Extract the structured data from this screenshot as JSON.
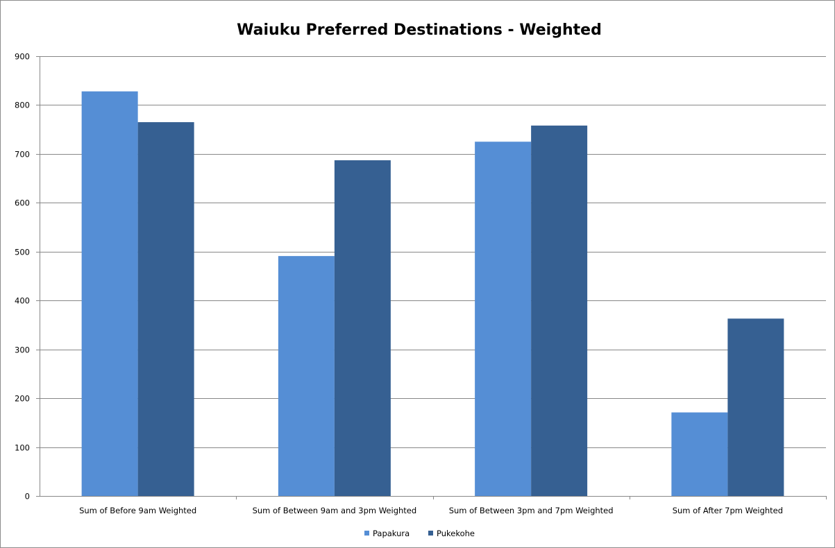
{
  "chart_data": {
    "type": "bar",
    "title": "Waiuku Preferred Destinations - Weighted",
    "xlabel": "",
    "ylabel": "",
    "categories": [
      "Sum of Before 9am Weighted",
      "Sum of Between 9am and 3pm Weighted",
      "Sum of Between 3pm and 7pm Weighted",
      "Sum of After 7pm Weighted"
    ],
    "series": [
      {
        "name": "Papakura",
        "color": "#558ed5",
        "values": [
          828,
          491,
          725,
          171
        ]
      },
      {
        "name": "Pukekohe",
        "color": "#366092",
        "values": [
          765,
          687,
          758,
          363
        ]
      }
    ],
    "ylim": [
      0,
      900
    ],
    "yticks": [
      "0",
      "100",
      "200",
      "300",
      "400",
      "500",
      "600",
      "700",
      "800",
      "900"
    ],
    "grid": true,
    "legend": "bottom"
  }
}
